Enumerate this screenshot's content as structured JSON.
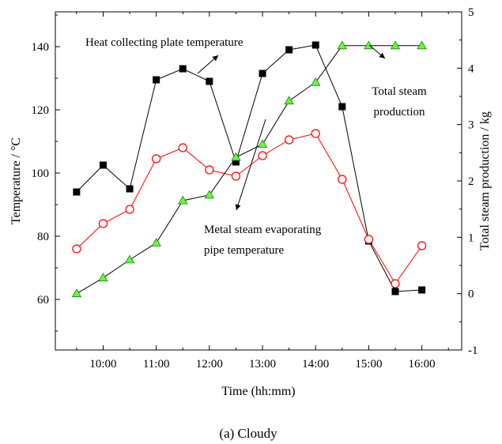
{
  "chart_data": {
    "type": "line",
    "caption": "(a) Cloudy",
    "xlabel": "Time (hh:mm)",
    "ylabel_left": "Temperature / °C",
    "ylabel_right": "Total steam production / kg",
    "x_ticks": [
      "10:00",
      "11:00",
      "12:00",
      "13:00",
      "14:00",
      "15:00",
      "16:00"
    ],
    "x_tick_values": [
      10,
      11,
      12,
      13,
      14,
      15,
      16
    ],
    "xlim": [
      9.1,
      16.75
    ],
    "ylim_left": [
      44,
      151
    ],
    "ylim_right": [
      -1,
      5
    ],
    "y_ticks_left": [
      60,
      80,
      100,
      120,
      140
    ],
    "y_ticks_right": [
      -1,
      0,
      1,
      2,
      3,
      4,
      5
    ],
    "x": [
      9.5,
      10.0,
      10.5,
      11.0,
      11.5,
      12.0,
      12.5,
      13.0,
      13.5,
      14.0,
      14.5,
      15.0,
      15.5,
      16.0
    ],
    "series": [
      {
        "name": "Heat collecting plate temperature",
        "axis": "left",
        "marker": "filled-square",
        "color": "#000000",
        "values": [
          94,
          102.5,
          95,
          129.5,
          133,
          129,
          103.5,
          131.5,
          139,
          140.5,
          121,
          78.5,
          62.5,
          63
        ]
      },
      {
        "name": "Metal steam evaporating pipe temperature",
        "axis": "left",
        "marker": "open-circle",
        "color": "#ff0000",
        "values": [
          76,
          84,
          88.5,
          104.5,
          108,
          101,
          99,
          105.5,
          110.5,
          112.5,
          98,
          79,
          65,
          77
        ]
      },
      {
        "name": "Total steam production",
        "axis": "right",
        "marker": "green-triangle",
        "color": "#000000",
        "values": [
          0,
          0.28,
          0.6,
          0.9,
          1.65,
          1.75,
          2.42,
          2.65,
          3.42,
          3.75,
          4.4,
          4.4,
          4.4,
          4.4
        ]
      }
    ],
    "annotations": {
      "heat_plate_lines": [
        "Heat collecting plate temperature"
      ],
      "metal_pipe_lines": [
        "Metal steam evaporating",
        "pipe temperature"
      ],
      "steam_lines": [
        "Total steam",
        "production"
      ]
    },
    "grid": false
  }
}
